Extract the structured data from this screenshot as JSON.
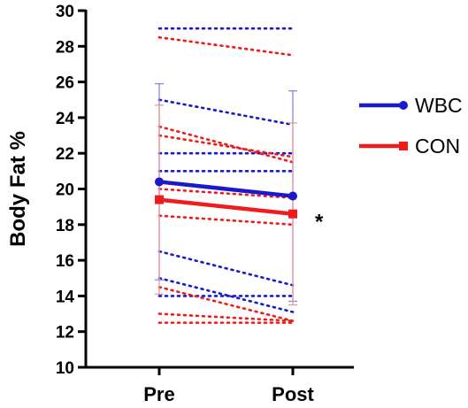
{
  "chart_data": {
    "type": "line",
    "categories": [
      "Pre",
      "Post"
    ],
    "ylabel": "Body Fat %",
    "ylim": [
      10,
      30
    ],
    "yticks": [
      10,
      12,
      14,
      16,
      18,
      20,
      22,
      24,
      26,
      28,
      30
    ],
    "legend": {
      "placement": "right"
    },
    "series": [
      {
        "name": "WBC",
        "color": "#1a1acc",
        "marker": "circle",
        "values": [
          20.4,
          19.6
        ],
        "error": [
          [
            14.9,
            25.9
          ],
          [
            13.7,
            25.5
          ]
        ]
      },
      {
        "name": "CON",
        "color": "#ee1c1c",
        "marker": "square",
        "values": [
          19.4,
          18.6
        ],
        "error": [
          [
            14.1,
            24.7
          ],
          [
            13.5,
            23.7
          ]
        ]
      }
    ],
    "individual_lines": {
      "WBC": [
        [
          29.0,
          29.0
        ],
        [
          25.0,
          23.6
        ],
        [
          22.0,
          22.0
        ],
        [
          21.0,
          21.0
        ],
        [
          16.5,
          14.6
        ],
        [
          15.0,
          13.1
        ],
        [
          14.0,
          14.0
        ]
      ],
      "CON": [
        [
          28.5,
          27.5
        ],
        [
          23.5,
          21.5
        ],
        [
          23.0,
          21.8
        ],
        [
          20.0,
          19.5
        ],
        [
          18.5,
          18.0
        ],
        [
          14.5,
          12.6
        ],
        [
          13.0,
          12.6
        ],
        [
          12.5,
          12.5
        ]
      ]
    },
    "annotations": [
      {
        "text": "*",
        "x": "Post",
        "y": 18.6
      }
    ]
  }
}
